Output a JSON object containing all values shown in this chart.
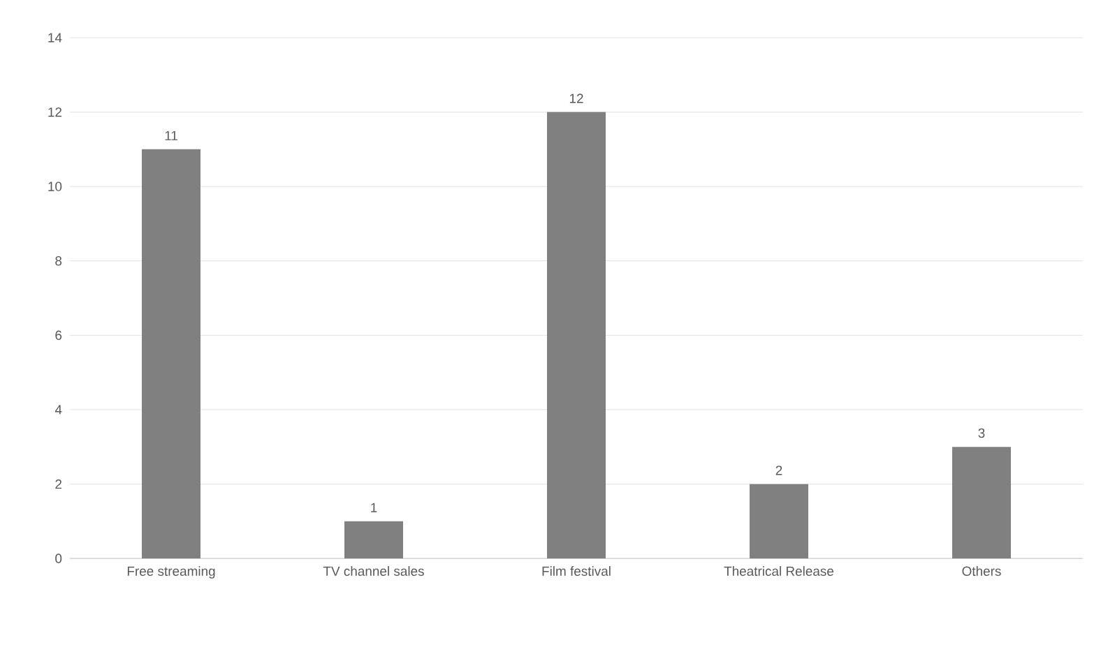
{
  "chart_data": {
    "type": "bar",
    "categories": [
      "Free streaming",
      "TV channel sales",
      "Film festival",
      "Theatrical Release",
      "Others"
    ],
    "values": [
      11,
      1,
      12,
      2,
      3
    ],
    "color": "#808080",
    "ylim": [
      0,
      14
    ],
    "yticks": [
      0,
      2,
      4,
      6,
      8,
      10,
      12,
      14
    ],
    "grid": "y",
    "data_labels": true
  }
}
